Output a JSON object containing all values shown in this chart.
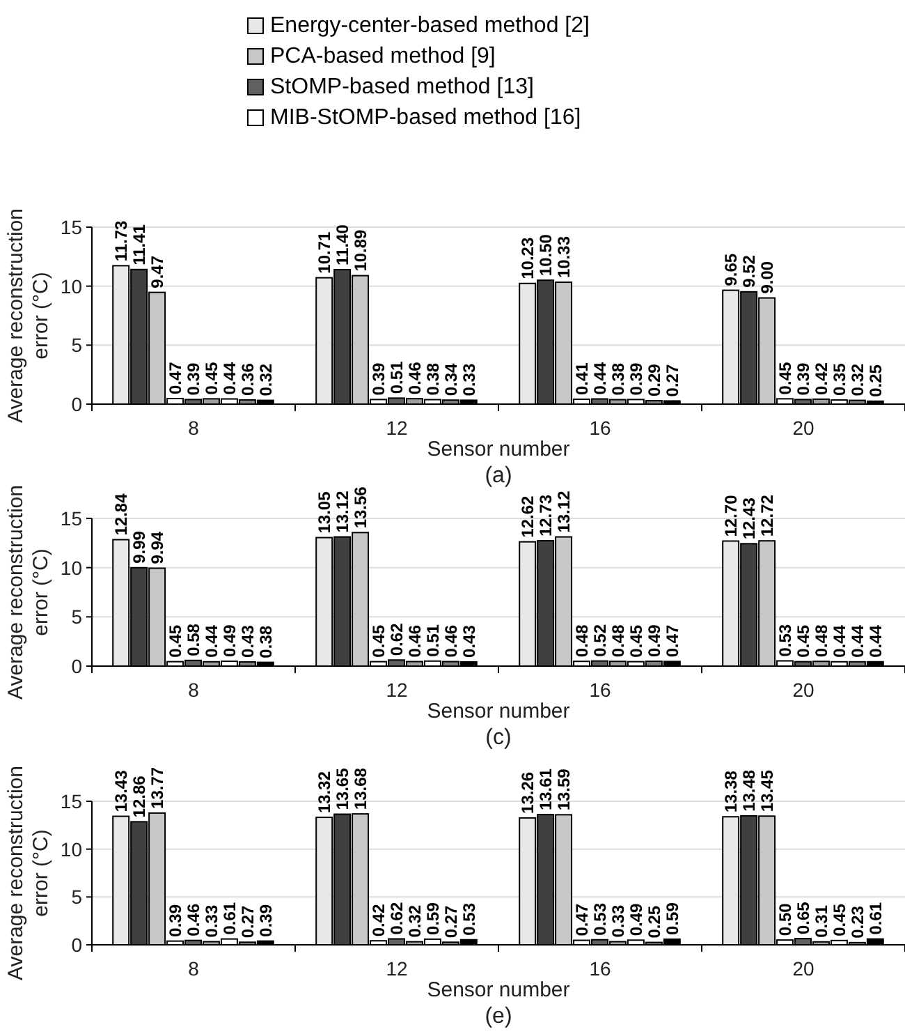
{
  "chart_data": [
    {
      "type": "bar",
      "categories": [
        "8",
        "12",
        "16",
        "20"
      ],
      "xlabel": "Sensor number",
      "ylabel": "Average reconstruction error (°C)",
      "ylim": [
        0,
        15
      ],
      "yticks": [
        0,
        5,
        10,
        15
      ],
      "grid": "y",
      "legend": "top",
      "annotations": [
        "(a)"
      ],
      "series": [
        {
          "name": "Energy-center-based method [2]",
          "color": "#e8e8e8",
          "values": [
            11.73,
            10.71,
            10.23,
            9.65
          ],
          "value_labels": [
            "11.73",
            "10.71",
            "10.23",
            "9.65"
          ]
        },
        {
          "color": "#404040",
          "values": [
            11.41,
            11.4,
            10.5,
            9.52
          ],
          "value_labels": [
            "11.41",
            "11.40",
            "10.50",
            "9.52"
          ]
        },
        {
          "name": "PCA-based method [9]",
          "color": "#c8c8c8",
          "values": [
            9.47,
            10.89,
            10.33,
            9.0
          ],
          "value_labels": [
            "9.47",
            "10.89",
            "10.33",
            "9.00"
          ]
        },
        {
          "color": "#ffffff",
          "values": [
            0.47,
            0.39,
            0.41,
            0.45
          ],
          "value_labels": [
            "0.47",
            "0.39",
            "0.41",
            "0.45"
          ]
        },
        {
          "name": "StOMP-based method [13]",
          "color": "#606060",
          "values": [
            0.39,
            0.51,
            0.44,
            0.39
          ],
          "value_labels": [
            "0.39",
            "0.51",
            "0.44",
            "0.39"
          ]
        },
        {
          "color": "#a0a0a0",
          "values": [
            0.45,
            0.46,
            0.38,
            0.42
          ],
          "value_labels": [
            "0.45",
            "0.46",
            "0.38",
            "0.42"
          ]
        },
        {
          "name": "MIB-StOMP-based method [16]",
          "color": "#ffffff",
          "values": [
            0.44,
            0.38,
            0.39,
            0.35
          ],
          "value_labels": [
            "0.44",
            "0.38",
            "0.39",
            "0.35"
          ]
        },
        {
          "color": "#808080",
          "values": [
            0.36,
            0.34,
            0.29,
            0.32
          ],
          "value_labels": [
            "0.36",
            "0.34",
            "0.29",
            "0.32"
          ]
        },
        {
          "color": "#000000",
          "values": [
            0.32,
            0.33,
            0.27,
            0.25
          ],
          "value_labels": [
            "0.32",
            "0.33",
            "0.27",
            "0.25"
          ]
        }
      ]
    },
    {
      "type": "bar",
      "categories": [
        "8",
        "12",
        "16",
        "20"
      ],
      "xlabel": "Sensor number",
      "ylabel": "Average reconstruction error (°C)",
      "ylim": [
        0,
        15
      ],
      "yticks": [
        0,
        5,
        10,
        15
      ],
      "grid": "y",
      "annotations": [
        "(c)"
      ],
      "series": [
        {
          "color": "#e8e8e8",
          "values": [
            12.84,
            13.05,
            12.62,
            12.7
          ],
          "value_labels": [
            "12.84",
            "13.05",
            "12.62",
            "12.70"
          ]
        },
        {
          "color": "#404040",
          "values": [
            9.99,
            13.12,
            12.73,
            12.43
          ],
          "value_labels": [
            "9.99",
            "13.12",
            "12.73",
            "12.43"
          ]
        },
        {
          "color": "#c8c8c8",
          "values": [
            9.94,
            13.56,
            13.12,
            12.72
          ],
          "value_labels": [
            "9.94",
            "13.56",
            "13.12",
            "12.72"
          ]
        },
        {
          "color": "#ffffff",
          "values": [
            0.45,
            0.45,
            0.48,
            0.53
          ],
          "value_labels": [
            "0.45",
            "0.45",
            "0.48",
            "0.53"
          ]
        },
        {
          "color": "#606060",
          "values": [
            0.58,
            0.62,
            0.52,
            0.45
          ],
          "value_labels": [
            "0.58",
            "0.62",
            "0.52",
            "0.45"
          ]
        },
        {
          "color": "#a0a0a0",
          "values": [
            0.44,
            0.46,
            0.48,
            0.48
          ],
          "value_labels": [
            "0.44",
            "0.46",
            "0.48",
            "0.48"
          ]
        },
        {
          "color": "#ffffff",
          "values": [
            0.49,
            0.51,
            0.45,
            0.44
          ],
          "value_labels": [
            "0.49",
            "0.51",
            "0.45",
            "0.44"
          ]
        },
        {
          "color": "#808080",
          "values": [
            0.43,
            0.46,
            0.49,
            0.44
          ],
          "value_labels": [
            "0.43",
            "0.46",
            "0.49",
            "0.44"
          ]
        },
        {
          "color": "#000000",
          "values": [
            0.38,
            0.43,
            0.47,
            0.44
          ],
          "value_labels": [
            "0.38",
            "0.43",
            "0.47",
            "0.44"
          ]
        }
      ]
    },
    {
      "type": "bar",
      "categories": [
        "8",
        "12",
        "16",
        "20"
      ],
      "xlabel": "Sensor number",
      "ylabel": "Average reconstruction error (°C)",
      "ylim": [
        0,
        15
      ],
      "yticks": [
        0,
        5,
        10,
        15
      ],
      "grid": "y",
      "annotations": [
        "(e)"
      ],
      "series": [
        {
          "color": "#e8e8e8",
          "values": [
            13.43,
            13.32,
            13.26,
            13.38
          ],
          "value_labels": [
            "13.43",
            "13.32",
            "13.26",
            "13.38"
          ]
        },
        {
          "color": "#404040",
          "values": [
            12.86,
            13.65,
            13.61,
            13.48
          ],
          "value_labels": [
            "12.86",
            "13.65",
            "13.61",
            "13.48"
          ]
        },
        {
          "color": "#c8c8c8",
          "values": [
            13.77,
            13.68,
            13.59,
            13.45
          ],
          "value_labels": [
            "13.77",
            "13.68",
            "13.59",
            "13.45"
          ]
        },
        {
          "color": "#ffffff",
          "values": [
            0.39,
            0.42,
            0.47,
            0.5
          ],
          "value_labels": [
            "0.39",
            "0.42",
            "0.47",
            "0.50"
          ]
        },
        {
          "color": "#606060",
          "values": [
            0.46,
            0.62,
            0.53,
            0.65
          ],
          "value_labels": [
            "0.46",
            "0.62",
            "0.53",
            "0.65"
          ]
        },
        {
          "color": "#a0a0a0",
          "values": [
            0.33,
            0.32,
            0.33,
            0.31
          ],
          "value_labels": [
            "0.33",
            "0.32",
            "0.33",
            "0.31"
          ]
        },
        {
          "color": "#ffffff",
          "values": [
            0.61,
            0.59,
            0.49,
            0.45
          ],
          "value_labels": [
            "0.61",
            "0.59",
            "0.49",
            "0.45"
          ]
        },
        {
          "color": "#808080",
          "values": [
            0.27,
            0.27,
            0.25,
            0.23
          ],
          "value_labels": [
            "0.27",
            "0.27",
            "0.25",
            "0.23"
          ]
        },
        {
          "color": "#000000",
          "values": [
            0.39,
            0.53,
            0.59,
            0.61
          ],
          "value_labels": [
            "0.39",
            "0.53",
            "0.59",
            "0.61"
          ]
        }
      ]
    }
  ]
}
